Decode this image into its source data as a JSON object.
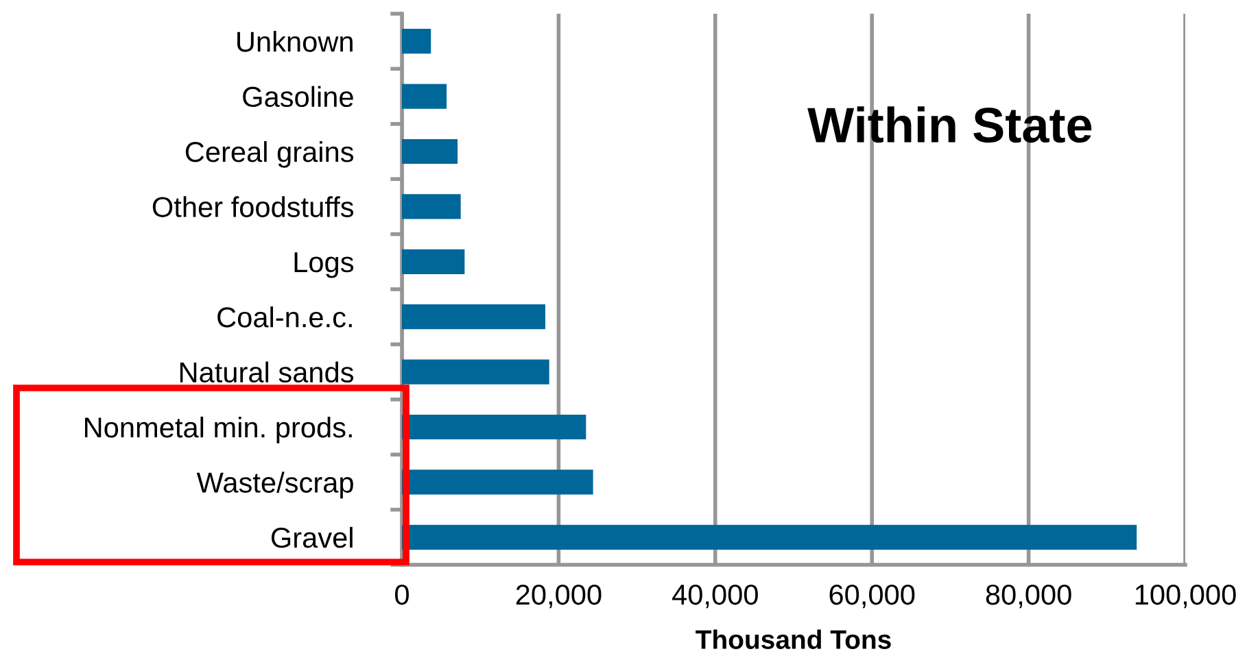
{
  "chart_data": {
    "type": "bar",
    "orientation": "horizontal",
    "categories": [
      "Unknown",
      "Gasoline",
      "Cereal grains",
      "Other foodstuffs",
      "Logs",
      "Coal-n.e.c.",
      "Natural sands",
      "Nonmetal min. prods.",
      "Waste/scrap",
      "Gravel"
    ],
    "values": [
      3700,
      5700,
      7100,
      7500,
      8000,
      18300,
      18800,
      23500,
      24400,
      93800
    ],
    "color": "#00679a",
    "xlabel": "Thousand Tons",
    "xlim": [
      0,
      100000
    ],
    "xticks": [
      {
        "value": 0,
        "label": "0"
      },
      {
        "value": 20000,
        "label": "20,000"
      },
      {
        "value": 40000,
        "label": "40,000"
      },
      {
        "value": 60000,
        "label": "60,000"
      },
      {
        "value": 80000,
        "label": "80,000"
      },
      {
        "value": 100000,
        "label": "100,000"
      }
    ],
    "grid": "x",
    "annotations": [
      "Within State"
    ]
  }
}
